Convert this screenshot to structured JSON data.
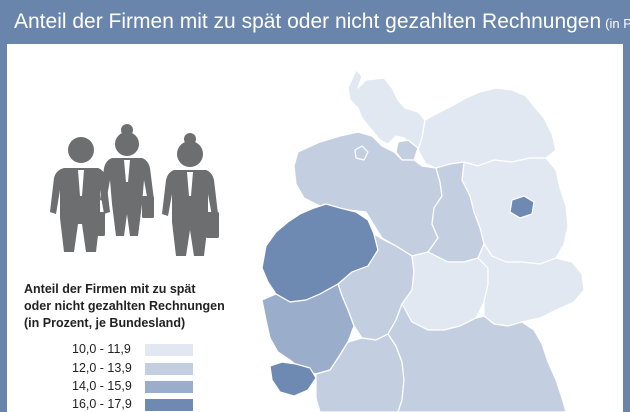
{
  "header": {
    "title": "Anteil der Firmen mit zu spät oder nicht gezahlten Rechnungen",
    "title_note": "(in Prozent, je BL.)"
  },
  "colors": {
    "frame": "#6a85ac",
    "class_10_11_9": "#e2e8f1",
    "class_12_13_9": "#c3cfe1",
    "class_14_15_9": "#9aaecb",
    "class_16_17_9": "#6f8ab2",
    "people": "#6d6e70"
  },
  "legend": {
    "title_lines": [
      "Anteil der Firmen mit zu spät",
      "oder nicht gezahlten Rechnungen",
      "(in Prozent, je Bundesland)"
    ],
    "classes": [
      {
        "label": "10,0  -  11,9",
        "color": "#e2e8f1"
      },
      {
        "label": "12,0  -  13,9",
        "color": "#c3cfe1"
      },
      {
        "label": "14,0  -  15,9",
        "color": "#9aaecb"
      },
      {
        "label": "16,0  -  17,9",
        "color": "#6f8ab2"
      }
    ]
  },
  "map": {
    "icons": [
      "businessman-icon",
      "businesswoman-icon",
      "businesswoman-icon"
    ]
  }
}
